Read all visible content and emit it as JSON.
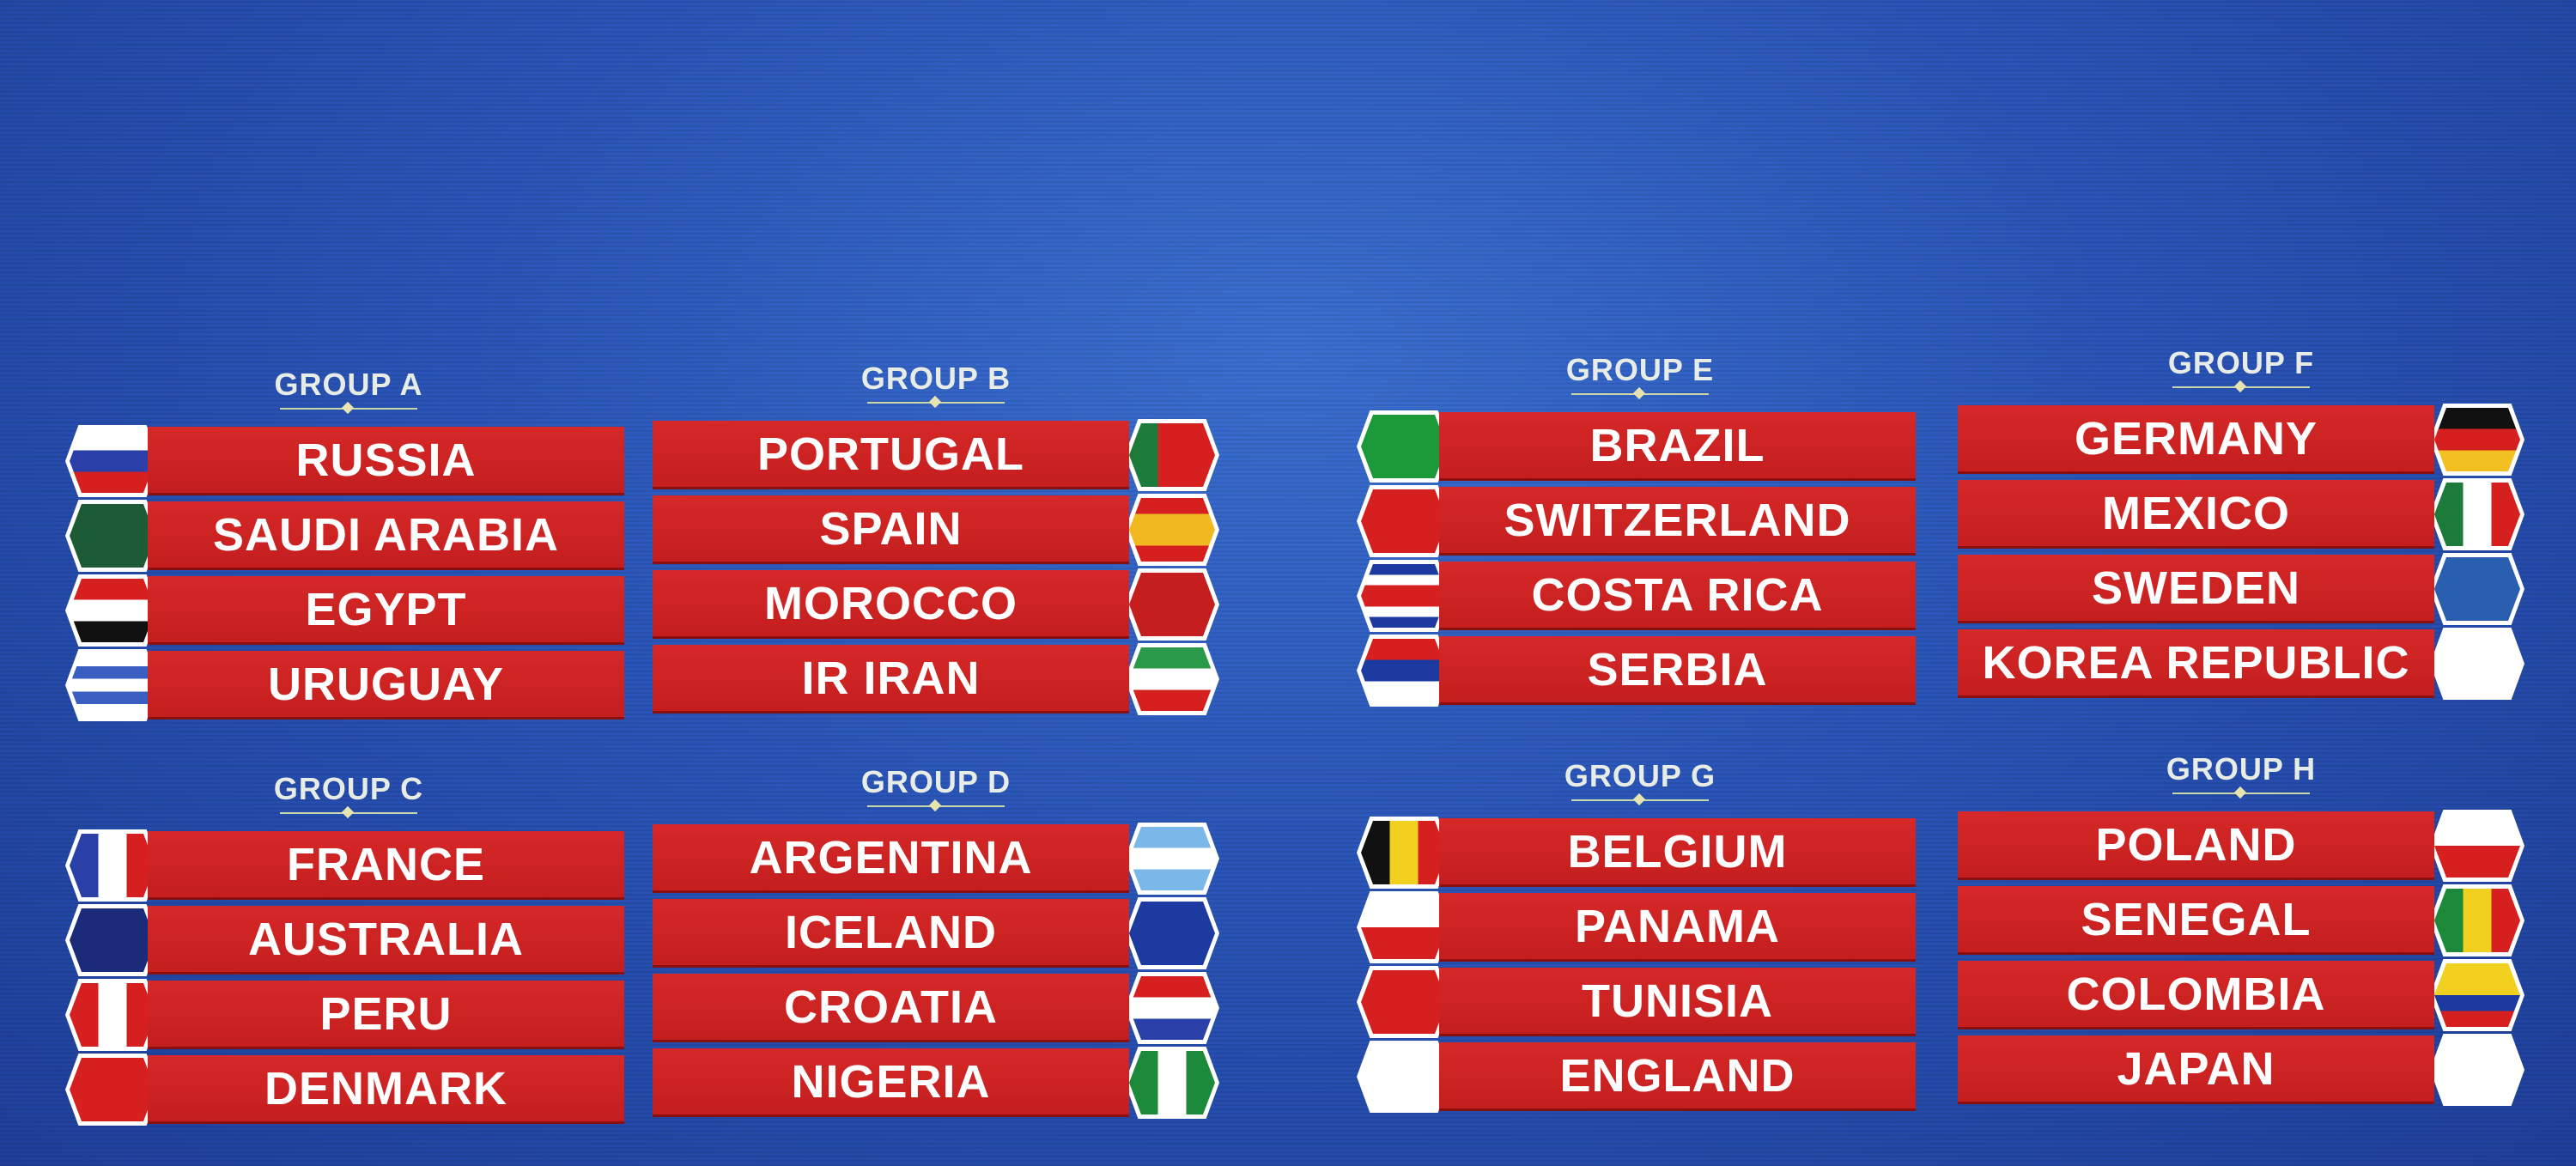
{
  "groups": [
    {
      "title": "GROUP A",
      "side": "left",
      "teams": [
        {
          "name": "RUSSIA",
          "flag": {
            "dir": "h",
            "colors": [
              "#ffffff",
              "#2a3fa8",
              "#d62020"
            ]
          }
        },
        {
          "name": "SAUDI ARABIA",
          "flag": {
            "dir": "h",
            "colors": [
              "#1c5b36"
            ]
          }
        },
        {
          "name": "EGYPT",
          "flag": {
            "dir": "h",
            "colors": [
              "#d62020",
              "#ffffff",
              "#111111"
            ]
          }
        },
        {
          "name": "URUGUAY",
          "flag": {
            "dir": "h",
            "colors": [
              "#ffffff",
              "#3a5fc0",
              "#ffffff",
              "#3a5fc0",
              "#ffffff"
            ]
          }
        }
      ]
    },
    {
      "title": "GROUP B",
      "side": "right",
      "teams": [
        {
          "name": "PORTUGAL",
          "flag": {
            "dir": "v",
            "colors": [
              "#1c7a3a",
              "#d62020",
              "#d62020"
            ]
          }
        },
        {
          "name": "SPAIN",
          "flag": {
            "dir": "h",
            "colors": [
              "#d62020",
              "#f2b820",
              "#f2b820",
              "#d62020"
            ]
          }
        },
        {
          "name": "MOROCCO",
          "flag": {
            "dir": "h",
            "colors": [
              "#c41e1e"
            ]
          }
        },
        {
          "name": "IR IRAN",
          "flag": {
            "dir": "h",
            "colors": [
              "#2a9a4a",
              "#ffffff",
              "#d62020"
            ]
          }
        }
      ]
    },
    {
      "title": "GROUP C",
      "side": "left",
      "teams": [
        {
          "name": "FRANCE",
          "flag": {
            "dir": "v",
            "colors": [
              "#2a3fa8",
              "#ffffff",
              "#d62020"
            ]
          }
        },
        {
          "name": "AUSTRALIA",
          "flag": {
            "dir": "h",
            "colors": [
              "#1c2a7a"
            ]
          }
        },
        {
          "name": "PERU",
          "flag": {
            "dir": "v",
            "colors": [
              "#d62020",
              "#ffffff",
              "#d62020"
            ]
          }
        },
        {
          "name": "DENMARK",
          "flag": {
            "dir": "h",
            "colors": [
              "#d62020"
            ]
          }
        }
      ]
    },
    {
      "title": "GROUP D",
      "side": "right",
      "teams": [
        {
          "name": "ARGENTINA",
          "flag": {
            "dir": "h",
            "colors": [
              "#7ab8e8",
              "#ffffff",
              "#7ab8e8"
            ]
          }
        },
        {
          "name": "ICELAND",
          "flag": {
            "dir": "h",
            "colors": [
              "#1c3aa0"
            ]
          }
        },
        {
          "name": "CROATIA",
          "flag": {
            "dir": "h",
            "colors": [
              "#d62020",
              "#ffffff",
              "#2a3fa8"
            ]
          }
        },
        {
          "name": "NIGERIA",
          "flag": {
            "dir": "v",
            "colors": [
              "#1c8a3a",
              "#ffffff",
              "#1c8a3a"
            ]
          }
        }
      ]
    },
    {
      "title": "GROUP E",
      "side": "left",
      "teams": [
        {
          "name": "BRAZIL",
          "flag": {
            "dir": "h",
            "colors": [
              "#1c9a3a"
            ]
          }
        },
        {
          "name": "SWITZERLAND",
          "flag": {
            "dir": "h",
            "colors": [
              "#d62020"
            ]
          }
        },
        {
          "name": "COSTA RICA",
          "flag": {
            "dir": "h",
            "colors": [
              "#1c3aa0",
              "#ffffff",
              "#d62020",
              "#d62020",
              "#ffffff",
              "#1c3aa0"
            ]
          }
        },
        {
          "name": "SERBIA",
          "flag": {
            "dir": "h",
            "colors": [
              "#d62020",
              "#1c3aa0",
              "#ffffff"
            ]
          }
        }
      ]
    },
    {
      "title": "GROUP F",
      "side": "right",
      "teams": [
        {
          "name": "GERMANY",
          "flag": {
            "dir": "h",
            "colors": [
              "#111111",
              "#d62020",
              "#f2c020"
            ]
          }
        },
        {
          "name": "MEXICO",
          "flag": {
            "dir": "v",
            "colors": [
              "#1c7a3a",
              "#ffffff",
              "#d62020"
            ]
          }
        },
        {
          "name": "SWEDEN",
          "flag": {
            "dir": "h",
            "colors": [
              "#2a5fb0"
            ]
          }
        },
        {
          "name": "KOREA REPUBLIC",
          "flag": {
            "dir": "h",
            "colors": [
              "#ffffff"
            ]
          }
        }
      ]
    },
    {
      "title": "GROUP G",
      "side": "left",
      "teams": [
        {
          "name": "BELGIUM",
          "flag": {
            "dir": "v",
            "colors": [
              "#111111",
              "#f2d020",
              "#d62020"
            ]
          }
        },
        {
          "name": "PANAMA",
          "flag": {
            "dir": "h",
            "colors": [
              "#ffffff",
              "#d62020"
            ]
          }
        },
        {
          "name": "TUNISIA",
          "flag": {
            "dir": "h",
            "colors": [
              "#d62020"
            ]
          }
        },
        {
          "name": "ENGLAND",
          "flag": {
            "dir": "h",
            "colors": [
              "#ffffff"
            ]
          }
        }
      ]
    },
    {
      "title": "GROUP H",
      "side": "right",
      "teams": [
        {
          "name": "POLAND",
          "flag": {
            "dir": "h",
            "colors": [
              "#ffffff",
              "#d62020"
            ]
          }
        },
        {
          "name": "SENEGAL",
          "flag": {
            "dir": "v",
            "colors": [
              "#1c8a3a",
              "#f2d020",
              "#d62020"
            ]
          }
        },
        {
          "name": "COLOMBIA",
          "flag": {
            "dir": "h",
            "colors": [
              "#f2d020",
              "#f2d020",
              "#1c3aa0",
              "#d62020"
            ]
          }
        },
        {
          "name": "JAPAN",
          "flag": {
            "dir": "h",
            "colors": [
              "#ffffff"
            ]
          }
        }
      ]
    }
  ]
}
